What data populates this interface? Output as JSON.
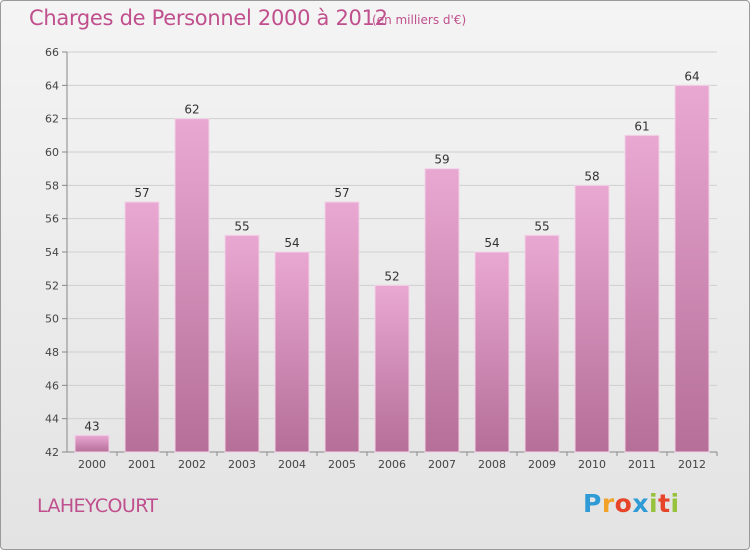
{
  "header": {
    "title": "Charges de Personnel 2000 à 2012",
    "subtitle": "(en milliers d'€)"
  },
  "footer": {
    "place": "LAHEYCOURT",
    "logo_letters": [
      "P",
      "r",
      "o",
      "x",
      "i",
      "t",
      "i"
    ]
  },
  "colors": {
    "bar_light": "#e9a8d2",
    "bar_dark": "#b56f98",
    "title": "#c0508d"
  },
  "chart_data": {
    "type": "bar",
    "title": "Charges de Personnel 2000 à 2012",
    "subtitle": "(en milliers d'€)",
    "categories": [
      "2000",
      "2001",
      "2002",
      "2003",
      "2004",
      "2005",
      "2006",
      "2007",
      "2008",
      "2009",
      "2010",
      "2011",
      "2012"
    ],
    "values": [
      43,
      57,
      62,
      55,
      54,
      57,
      52,
      59,
      54,
      55,
      58,
      61,
      64
    ],
    "ylim": [
      42,
      66
    ],
    "yticks": [
      42,
      44,
      46,
      48,
      50,
      52,
      54,
      56,
      58,
      60,
      62,
      64,
      66
    ],
    "grid": true,
    "xlabel": "",
    "ylabel": ""
  }
}
